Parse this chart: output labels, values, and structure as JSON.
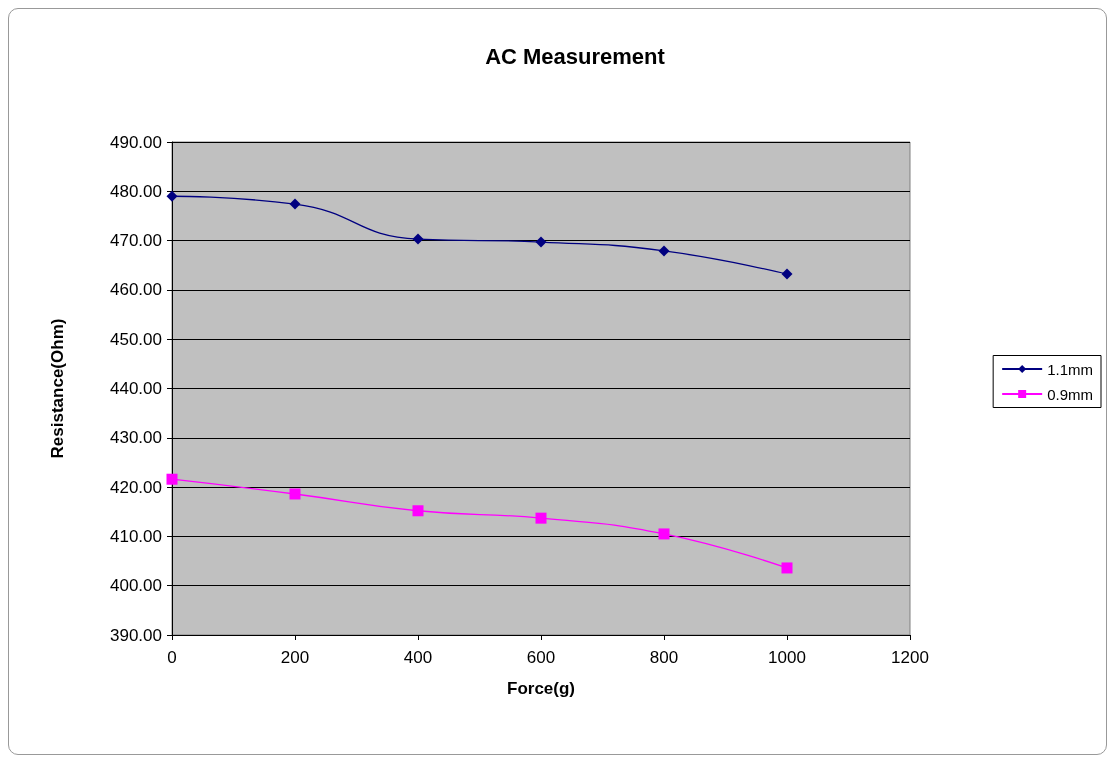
{
  "chart_data": {
    "type": "line",
    "title": "AC Measurement",
    "xlabel": "Force(g)",
    "ylabel": "Resistance(Ohm)",
    "x": [
      0,
      200,
      400,
      600,
      800,
      1000
    ],
    "series": [
      {
        "name": "1.1mm",
        "color": "#000080",
        "marker": "diamond",
        "values": [
          479.0,
          477.4,
          470.3,
          469.7,
          467.9,
          463.2
        ]
      },
      {
        "name": "0.9mm",
        "color": "#ff00ff",
        "marker": "square",
        "values": [
          421.6,
          418.6,
          415.2,
          413.7,
          410.5,
          403.6
        ]
      }
    ],
    "xlim": [
      0,
      1200
    ],
    "xticks": [
      0,
      200,
      400,
      600,
      800,
      1000,
      1200
    ],
    "ylim": [
      390,
      490
    ],
    "yticks": [
      {
        "value": 390,
        "label": "390.00"
      },
      {
        "value": 400,
        "label": "400.00"
      },
      {
        "value": 410,
        "label": "410.00"
      },
      {
        "value": 420,
        "label": "420.00"
      },
      {
        "value": 430,
        "label": "430.00"
      },
      {
        "value": 440,
        "label": "440.00"
      },
      {
        "value": 450,
        "label": "450.00"
      },
      {
        "value": 460,
        "label": "460.00"
      },
      {
        "value": 470,
        "label": "470.00"
      },
      {
        "value": 480,
        "label": "480.00"
      },
      {
        "value": 490,
        "label": "490.00"
      }
    ],
    "grid": "y",
    "legend": "right",
    "line_style": "solid"
  }
}
